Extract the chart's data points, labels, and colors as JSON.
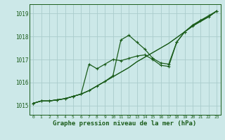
{
  "background_color": "#cce8e8",
  "grid_color": "#aacccc",
  "line_color": "#1a5c1a",
  "marker_color": "#1a5c1a",
  "xlabel": "Graphe pression niveau de la mer (hPa)",
  "xlabel_fontsize": 6.5,
  "ylabel_values": [
    1015,
    1016,
    1017,
    1018,
    1019
  ],
  "xlim": [
    -0.5,
    23.5
  ],
  "ylim": [
    1014.6,
    1019.4
  ],
  "xticks": [
    0,
    1,
    2,
    3,
    4,
    5,
    6,
    7,
    8,
    9,
    10,
    11,
    12,
    13,
    14,
    15,
    16,
    17,
    18,
    19,
    20,
    21,
    22,
    23
  ],
  "series": [
    {
      "y": [
        1015.1,
        1015.2,
        1015.2,
        1015.25,
        1015.3,
        1015.4,
        1015.5,
        1015.65,
        1015.85,
        1016.05,
        1016.25,
        1016.45,
        1016.65,
        1016.9,
        1017.1,
        1017.3,
        1017.5,
        1017.7,
        1017.95,
        1018.2,
        1018.45,
        1018.65,
        1018.85,
        1019.1
      ],
      "markers": false,
      "lw": 0.9
    },
    {
      "y": [
        1015.1,
        1015.2,
        1015.2,
        1015.25,
        1015.3,
        1015.4,
        1015.5,
        1015.65,
        1015.85,
        1016.05,
        1016.25,
        1016.45,
        1016.65,
        1016.9,
        1017.1,
        1017.3,
        1017.5,
        1017.7,
        1017.95,
        1018.2,
        1018.45,
        1018.65,
        1018.85,
        1019.1
      ],
      "markers": false,
      "lw": 0.7
    },
    {
      "y": [
        1015.1,
        1015.2,
        1015.2,
        1015.25,
        1015.3,
        1015.4,
        1015.5,
        1015.65,
        1015.85,
        1016.05,
        1016.3,
        1017.85,
        1018.05,
        1017.75,
        1017.45,
        1017.05,
        1016.85,
        1016.8,
        1017.75,
        1018.2,
        1018.5,
        1018.7,
        1018.85,
        1019.1
      ],
      "markers": true,
      "lw": 0.9
    },
    {
      "y": [
        1015.1,
        1015.2,
        1015.2,
        1015.25,
        1015.3,
        1015.4,
        1015.5,
        1016.8,
        1016.6,
        1016.8,
        1017.0,
        1016.95,
        1017.05,
        1017.15,
        1017.2,
        1017.0,
        1016.75,
        1016.7,
        1017.75,
        1018.2,
        1018.45,
        1018.7,
        1018.9,
        1019.1
      ],
      "markers": true,
      "lw": 0.9
    }
  ]
}
